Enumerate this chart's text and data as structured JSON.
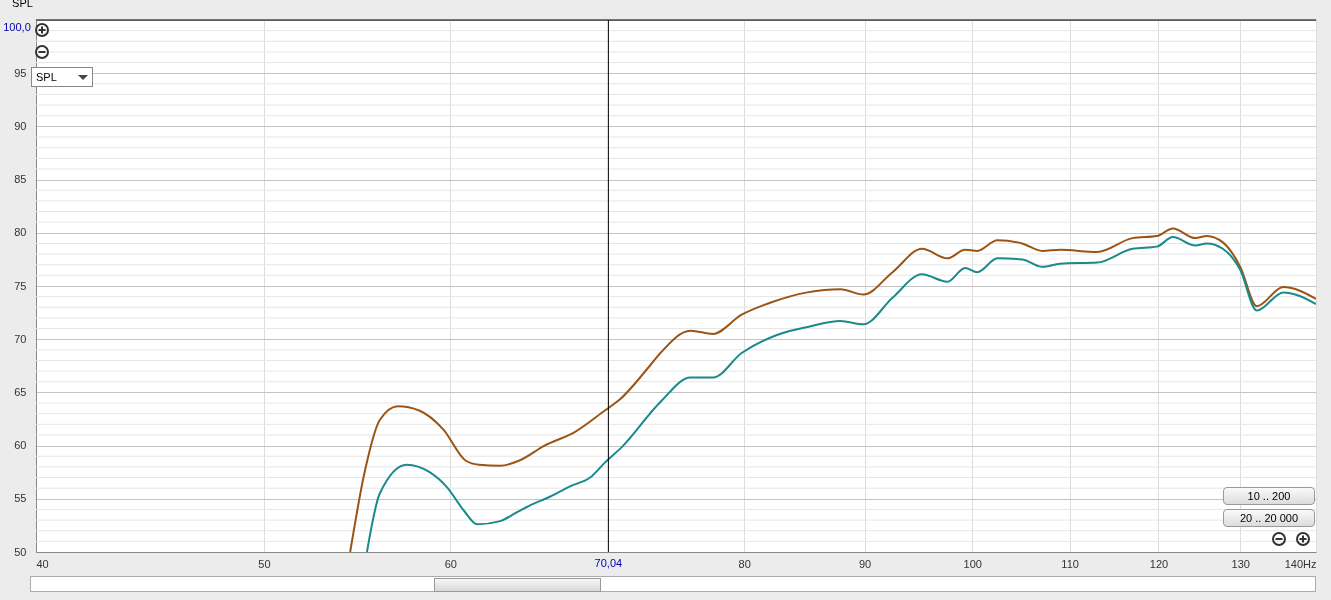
{
  "chart_data": {
    "type": "line",
    "ylabel": "SPL",
    "log": "x",
    "xlim": [
      40,
      140
    ],
    "ylim": [
      50,
      100
    ],
    "xticks": [
      40,
      50,
      60,
      {
        "value": 70,
        "label": null
      },
      80,
      90,
      100,
      110,
      120,
      130,
      {
        "value": 140,
        "label": "140Hz"
      }
    ],
    "yticks": [
      50,
      {
        "value": 51,
        "label": null
      },
      {
        "value": 52,
        "label": null
      },
      {
        "value": 53,
        "label": null
      },
      {
        "value": 54,
        "label": null
      },
      55,
      {
        "value": 56,
        "label": null
      },
      {
        "value": 57,
        "label": null
      },
      {
        "value": 58,
        "label": null
      },
      {
        "value": 59,
        "label": null
      },
      60,
      {
        "value": 61,
        "label": null
      },
      {
        "value": 62,
        "label": null
      },
      {
        "value": 63,
        "label": null
      },
      {
        "value": 64,
        "label": null
      },
      65,
      {
        "value": 66,
        "label": null
      },
      {
        "value": 67,
        "label": null
      },
      {
        "value": 68,
        "label": null
      },
      {
        "value": 69,
        "label": null
      },
      70,
      {
        "value": 71,
        "label": null
      },
      {
        "value": 72,
        "label": null
      },
      {
        "value": 73,
        "label": null
      },
      {
        "value": 74,
        "label": null
      },
      75,
      {
        "value": 76,
        "label": null
      },
      {
        "value": 77,
        "label": null
      },
      {
        "value": 78,
        "label": null
      },
      {
        "value": 79,
        "label": null
      },
      80,
      {
        "value": 81,
        "label": null
      },
      {
        "value": 82,
        "label": null
      },
      {
        "value": 83,
        "label": null
      },
      {
        "value": 84,
        "label": null
      },
      85,
      {
        "value": 86,
        "label": null
      },
      {
        "value": 87,
        "label": null
      },
      {
        "value": 88,
        "label": null
      },
      {
        "value": 89,
        "label": null
      },
      90,
      {
        "value": 91,
        "label": null
      },
      {
        "value": 92,
        "label": null
      },
      {
        "value": 93,
        "label": null
      },
      {
        "value": 94,
        "label": null
      },
      95,
      {
        "value": 96,
        "label": null
      },
      {
        "value": 97,
        "label": null
      },
      {
        "value": 98,
        "label": null
      },
      {
        "value": 99,
        "label": null
      },
      {
        "value": 100,
        "label": null
      }
    ],
    "grid": true,
    "marker": "none",
    "line_style": "solid",
    "series": [
      {
        "color": "#9c5414",
        "x": [
          54.4,
          55.2,
          56.0,
          57.0,
          58.2,
          59.6,
          60.9,
          61.7,
          63.0,
          64.2,
          65.8,
          67.8,
          69.8,
          70.8,
          73.0,
          73.7,
          75.9,
          77.6,
          79.8,
          82.0,
          85.1,
          87.9,
          89.9,
          92.5,
          95.2,
          97.6,
          99.3,
          100.5,
          102.5,
          105.0,
          107.1,
          109.0,
          113.0,
          117.0,
          119.8,
          121.7,
          124.4,
          125.8,
          127.8,
          130.0,
          132.1,
          135.6,
          140
        ],
        "values": [
          50,
          57.7,
          62.4,
          63.7,
          63.3,
          61.5,
          58.6,
          58.2,
          58.1,
          58.6,
          60.0,
          61.3,
          63.3,
          64.3,
          67.6,
          68.7,
          70.8,
          70.5,
          72.3,
          73.4,
          74.4,
          74.7,
          74.2,
          76.3,
          78.5,
          77.6,
          78.4,
          78.3,
          79.3,
          79.0,
          78.3,
          78.4,
          78.2,
          79.5,
          79.7,
          80.4,
          79.5,
          79.7,
          79.1,
          76.8,
          73.1,
          74.9,
          73.8
        ]
      },
      {
        "color": "#1a8a8a",
        "x": [
          55.3,
          56.0,
          57.5,
          58.8,
          59.8,
          60.8,
          61.6,
          63.0,
          64.0,
          64.9,
          66.0,
          67.5,
          68.8,
          69.8,
          71.0,
          73.7,
          75.9,
          77.6,
          79.8,
          82.6,
          85.3,
          87.9,
          89.9,
          92.5,
          95.2,
          97.6,
          99.3,
          100.5,
          102.5,
          105.0,
          107.1,
          109.0,
          113.0,
          117.0,
          119.8,
          121.7,
          124.4,
          125.8,
          127.8,
          130.0,
          132.1,
          135.6,
          140
        ],
        "values": [
          50,
          55.5,
          58.2,
          57.5,
          56.1,
          53.9,
          52.6,
          52.9,
          53.7,
          54.4,
          55.1,
          56.2,
          57.0,
          58.4,
          59.9,
          64.1,
          66.4,
          66.4,
          68.7,
          70.4,
          71.2,
          71.7,
          71.4,
          73.9,
          76.1,
          75.4,
          76.7,
          76.3,
          77.6,
          77.5,
          76.8,
          77.1,
          77.2,
          78.5,
          78.7,
          79.6,
          78.8,
          79.0,
          78.5,
          76.5,
          72.7,
          74.4,
          73.3
        ]
      }
    ],
    "ref_lines": [
      {
        "axis": "x",
        "value": 70.04,
        "label": "70,04",
        "color": "#000000"
      },
      {
        "axis": "y",
        "value": 100,
        "label": "100,0",
        "color": "#000000"
      }
    ],
    "annotations": [
      "SPL",
      "10 .. 200",
      "20 .. 20 000"
    ]
  }
}
